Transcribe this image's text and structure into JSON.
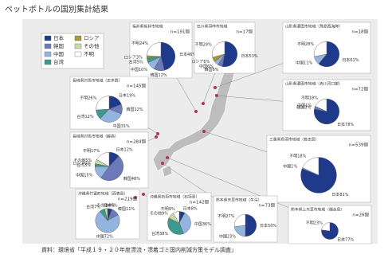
{
  "title": "ペットボトルの国別集計結果",
  "legend": [
    {
      "name": "日本",
      "color": "#1f3a8a"
    },
    {
      "name": "韓国",
      "color": "#6d79b8"
    },
    {
      "name": "中国",
      "color": "#93b4de"
    },
    {
      "name": "台湾",
      "color": "#3a9a8c"
    },
    {
      "name": "ロシア",
      "color": "#a89838"
    },
    {
      "name": "その他",
      "color": "#c9dca4"
    },
    {
      "name": "不明",
      "color": "#ffffff"
    }
  ],
  "panels": [
    {
      "title": "福井県坂井市地域",
      "n": "n=191個",
      "slices": [
        {
          "name": "日本",
          "value": 46,
          "value_label": "46%"
        },
        {
          "name": "韓国",
          "value": 12,
          "value_label": "12%"
        },
        {
          "name": "中国",
          "value": 10,
          "value_label": "10%"
        },
        {
          "name": "台湾",
          "value": 5,
          "value_label": "5%"
        },
        {
          "name": "ロシア",
          "value": 3,
          "value_label": "3%"
        },
        {
          "name": "不明",
          "value": 24,
          "value_label": "24%"
        }
      ]
    },
    {
      "title": "石川県羽咋市地域",
      "n": "n=17個",
      "slices": [
        {
          "name": "日本",
          "value": 53,
          "value_label": "53%"
        },
        {
          "name": "韓国",
          "value": 6,
          "value_label": "6%"
        },
        {
          "name": "中国",
          "value": 6,
          "value_label": "6%"
        },
        {
          "name": "ロシア",
          "value": 6,
          "value_label": "6%"
        },
        {
          "name": "不明",
          "value": 29,
          "value_label": "29%"
        }
      ]
    },
    {
      "title": "山形県酒田市地域（飛島西海岸）",
      "n": "n=18個",
      "slices": [
        {
          "name": "日本",
          "value": 61,
          "value_label": "61%"
        },
        {
          "name": "中国",
          "value": 11,
          "value_label": "11%"
        },
        {
          "name": "不明",
          "value": 28,
          "value_label": "28%"
        }
      ]
    },
    {
      "title": "山形県酒田市地域（赤川河口部）",
      "n": "n=72個",
      "slices": [
        {
          "name": "日本",
          "value": 78,
          "value_label": "78%"
        },
        {
          "name": "韓国",
          "value": 3,
          "value_label": "3%"
        },
        {
          "name": "中国",
          "value": 1,
          "value_label": "1%"
        },
        {
          "name": "不明",
          "value": 18,
          "value_label": "18%"
        }
      ]
    },
    {
      "title": "三重県鳥羽市地域（答志島）",
      "n": "n=539個",
      "slices": [
        {
          "name": "日本",
          "value": 81,
          "value_label": "81%"
        },
        {
          "name": "中国",
          "value": 1,
          "value_label": "1%"
        },
        {
          "name": "不明",
          "value": 18,
          "value_label": "18%"
        }
      ]
    },
    {
      "title": "熊本県上天草市地域（樋合島）",
      "n": "n=26個",
      "slices": [
        {
          "name": "日本",
          "value": 77,
          "value_label": "77%"
        },
        {
          "name": "不明",
          "value": 23,
          "value_label": "23%"
        }
      ]
    },
    {
      "title": "熊本県天草市地域（牛深）",
      "n": "n=73個",
      "slices": [
        {
          "name": "日本",
          "value": 50,
          "value_label": "50%"
        },
        {
          "name": "中国",
          "value": 23,
          "value_label": "23%"
        },
        {
          "name": "不明",
          "value": 27,
          "value_label": "27%"
        }
      ]
    },
    {
      "title": "沖縄県石垣市地域（石垣島）",
      "n": "n=142個",
      "slices": [
        {
          "name": "日本",
          "value": 8,
          "value_label": "8%"
        },
        {
          "name": "中国",
          "value": 36,
          "value_label": "36%"
        },
        {
          "name": "台湾",
          "value": 38,
          "value_label": "38%"
        },
        {
          "name": "その他",
          "value": 9,
          "value_label": "9%"
        },
        {
          "name": "不明",
          "value": 9,
          "value_label": "9%"
        }
      ]
    },
    {
      "title": "沖縄県竹富町地域（西表島）",
      "n": "n=219個",
      "slices": [
        {
          "name": "日本",
          "value": 6,
          "value_label": "6%"
        },
        {
          "name": "韓国",
          "value": 11,
          "value_label": "11%"
        },
        {
          "name": "中国",
          "value": 72,
          "value_label": "72%"
        },
        {
          "name": "台湾",
          "value": 7,
          "value_label": "7%"
        },
        {
          "name": "その他",
          "value": 4,
          "value_label": "4%"
        }
      ]
    },
    {
      "title": "長崎県対馬市地域（越高）",
      "n": "n=284個",
      "slices": [
        {
          "name": "日本",
          "value": 12,
          "value_label": "12%"
        },
        {
          "name": "韓国",
          "value": 48,
          "value_label": "48%"
        },
        {
          "name": "中国",
          "value": 15,
          "value_label": "15%"
        },
        {
          "name": "台湾",
          "value": 3,
          "value_label": "3%"
        },
        {
          "name": "ロシア",
          "value": 0,
          "value_label": "0%"
        },
        {
          "name": "その他",
          "value": 5,
          "value_label": "5%"
        },
        {
          "name": "不明",
          "value": 17,
          "value_label": "17%"
        }
      ]
    },
    {
      "title": "長崎県対馬市地域（志多賀）",
      "n": "n=145個",
      "slices": [
        {
          "name": "日本",
          "value": 19,
          "value_label": "19%"
        },
        {
          "name": "韓国",
          "value": 12,
          "value_label": "12%"
        },
        {
          "name": "中国",
          "value": 31,
          "value_label": "31%"
        },
        {
          "name": "台湾",
          "value": 12,
          "value_label": "12%"
        },
        {
          "name": "不明",
          "value": 26,
          "value_label": "26%"
        }
      ]
    }
  ],
  "source": "資料：環境省「平成１９・２０年度漂流・漂着ゴミ国内削減方策モデル調査」"
}
